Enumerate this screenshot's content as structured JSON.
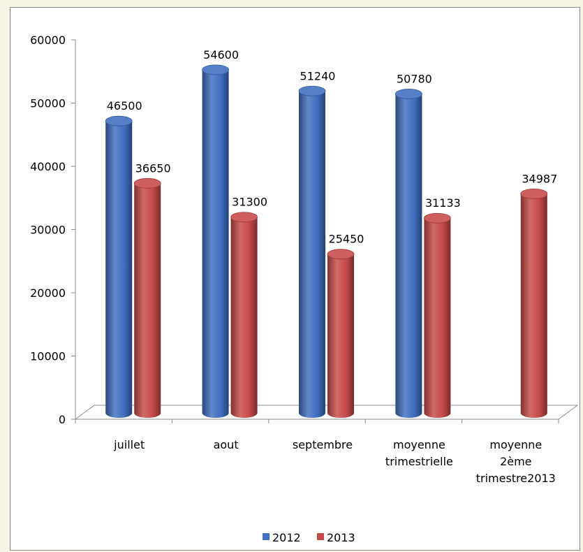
{
  "chart_data": {
    "type": "bar",
    "categories": [
      [
        "juillet"
      ],
      [
        "aout"
      ],
      [
        "septembre"
      ],
      [
        "moyenne",
        "trimestrielle"
      ],
      [
        "moyenne",
        "2ème",
        "trimestre2013"
      ]
    ],
    "series": [
      {
        "name": "2012",
        "color": "#3e6fc0",
        "values": [
          46500,
          54600,
          51240,
          50780,
          null
        ]
      },
      {
        "name": "2013",
        "color": "#c64a48",
        "values": [
          36650,
          31300,
          25450,
          31133,
          34987
        ]
      }
    ],
    "ylim": [
      0,
      60000
    ],
    "yticks": [
      "0",
      "10000",
      "20000",
      "30000",
      "40000",
      "50000",
      "60000"
    ],
    "data_labels": [
      [
        "46500",
        "54600",
        "51240",
        "50780",
        ""
      ],
      [
        "36650",
        "31300",
        "25450",
        "31133",
        "34987"
      ]
    ],
    "legend": {
      "position": "bottom",
      "entries": [
        "2012",
        "2013"
      ]
    },
    "grid": false,
    "style": "3d-cylinder"
  }
}
